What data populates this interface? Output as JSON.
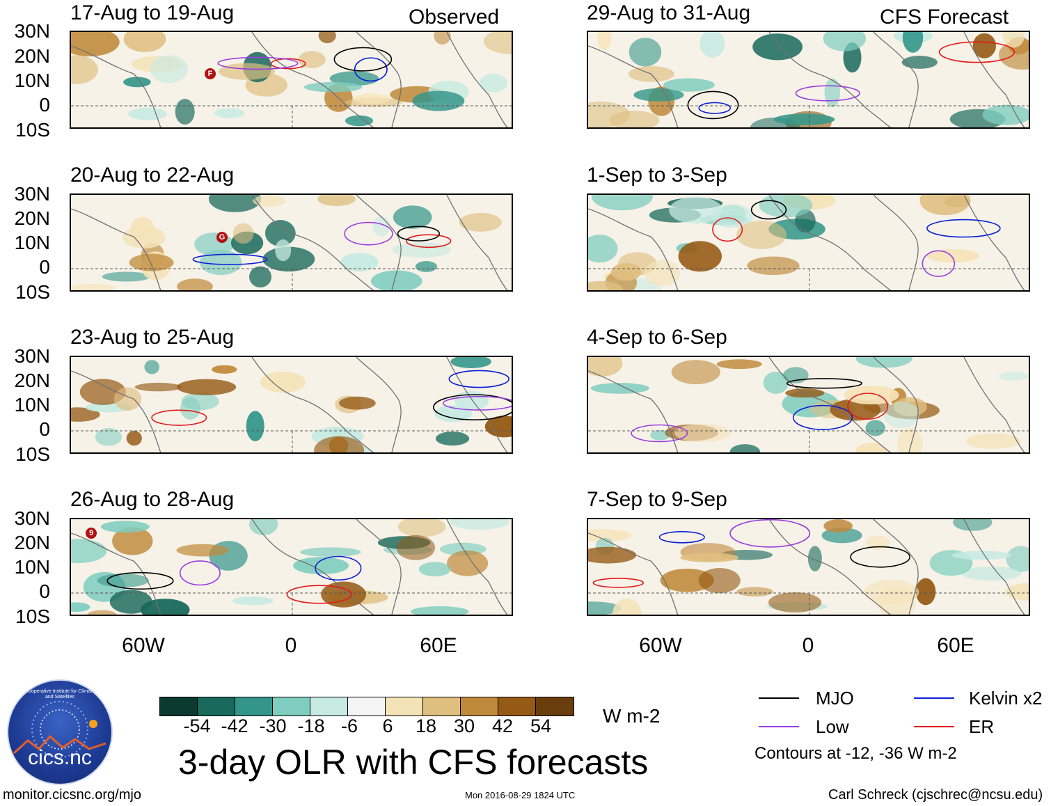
{
  "main_title": "3-day OLR with CFS forecasts",
  "logo_text": "cics.nc",
  "logo_ring_text": "Cooperative Institute for Climate and Satellites",
  "footer": {
    "left": "monitor.cicsnc.org/mjo",
    "center": "Mon 2016-08-29 1824 UTC",
    "right": "Carl Schreck (cjschrec@ncsu.edu)"
  },
  "column_tags": {
    "observed": "Observed",
    "forecast": "CFS Forecast"
  },
  "lat_labels": [
    "30N",
    "20N",
    "10N",
    "0",
    "10S"
  ],
  "lon_labels": [
    "60W",
    "0",
    "60E"
  ],
  "panels_left": [
    {
      "title": "17-Aug to 19-Aug",
      "storm": "F"
    },
    {
      "title": "20-Aug to 22-Aug",
      "storm": "G"
    },
    {
      "title": "23-Aug to 25-Aug",
      "storm": ""
    },
    {
      "title": "26-Aug to 28-Aug",
      "storm": "9"
    }
  ],
  "panels_right": [
    {
      "title": "29-Aug to 31-Aug"
    },
    {
      "title": "1-Sep to 3-Sep"
    },
    {
      "title": "4-Sep to 6-Sep"
    },
    {
      "title": "7-Sep to 9-Sep"
    }
  ],
  "colorbar": {
    "unit": "W m-2",
    "labels": [
      "-54",
      "-42",
      "-30",
      "-18",
      "-6",
      "6",
      "18",
      "30",
      "42",
      "54"
    ],
    "colors": [
      "#0b3b30",
      "#19695c",
      "#34968a",
      "#7fcdbf",
      "#c7eae2",
      "#f5f5f5",
      "#f5e3b8",
      "#dfbf80",
      "#c08a3c",
      "#955a15",
      "#6a3e0c"
    ]
  },
  "legend": {
    "mjo": {
      "label": "MJO",
      "color": "#000000"
    },
    "kelvin": {
      "label": "Kelvin x2",
      "color": "#0a1fd6"
    },
    "low": {
      "label": "Low",
      "color": "#9a3ee0"
    },
    "er": {
      "label": "ER",
      "color": "#e21a1a"
    },
    "note": "Contours at -12, -36 W m-2"
  }
}
